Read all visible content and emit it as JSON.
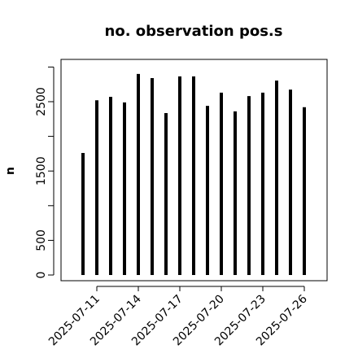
{
  "chart_data": {
    "type": "spike",
    "title": "no. observation pos.s",
    "y_label": "n",
    "x": [
      "2025-07-10",
      "2025-07-11",
      "2025-07-12",
      "2025-07-13",
      "2025-07-14",
      "2025-07-15",
      "2025-07-16",
      "2025-07-17",
      "2025-07-18",
      "2025-07-19",
      "2025-07-20",
      "2025-07-21",
      "2025-07-22",
      "2025-07-23",
      "2025-07-24",
      "2025-07-25",
      "2025-07-26"
    ],
    "values": [
      1760,
      2520,
      2570,
      2490,
      2900,
      2840,
      2335,
      2865,
      2865,
      2440,
      2630,
      2360,
      2580,
      2630,
      2805,
      2675,
      2420
    ],
    "color": "#000000",
    "xlim": [
      "2025-07-09",
      "2025-07-27"
    ],
    "xticks": [
      "2025-07-11",
      "2025-07-14",
      "2025-07-17",
      "2025-07-20",
      "2025-07-23",
      "2025-07-26"
    ],
    "xtick_colors": [
      "#000000",
      "#000000",
      "#228b22",
      "#000000",
      "#000000",
      "#000000"
    ],
    "ylim": [
      -82,
      3110
    ],
    "yticks": [
      0,
      500,
      {
        "value": 1000,
        "label": null
      },
      1500,
      {
        "value": 2000,
        "label": null
      },
      2500,
      {
        "value": 3000,
        "label": null
      }
    ]
  }
}
